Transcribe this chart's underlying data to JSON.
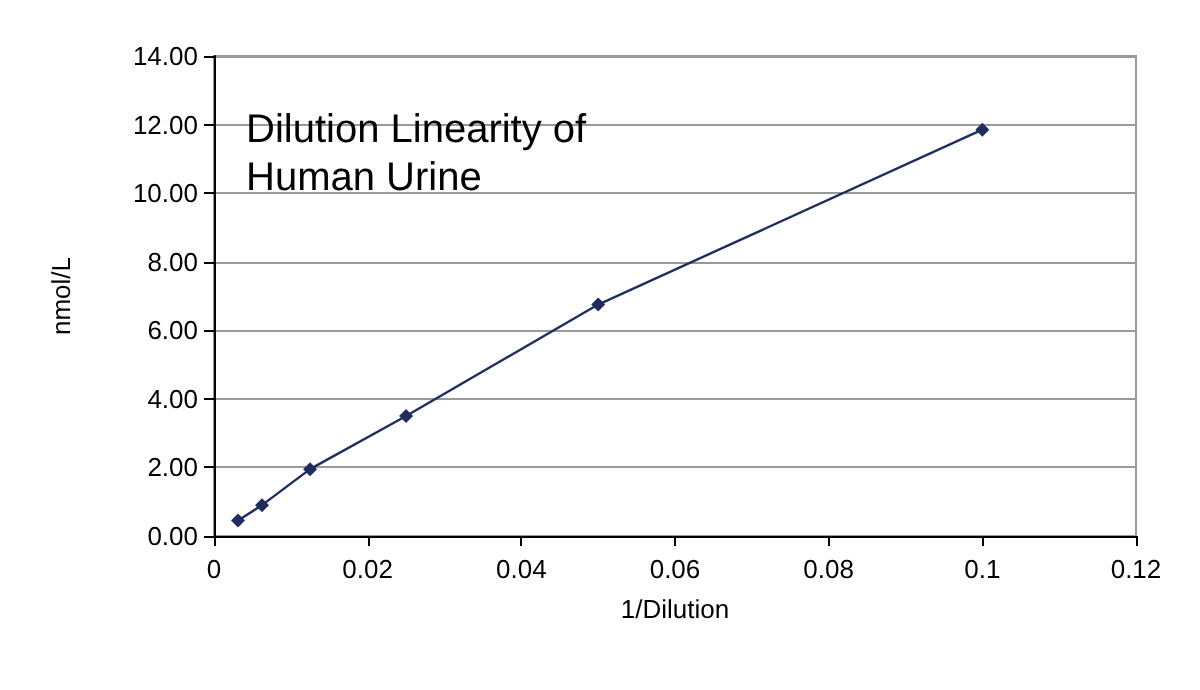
{
  "chart_data": {
    "type": "line",
    "title": "Dilution Linearity of Human Urine",
    "xlabel": "1/Dilution",
    "ylabel": "nmol/L",
    "x": [
      0.003125,
      0.00625,
      0.0125,
      0.025,
      0.05,
      0.1
    ],
    "series": [
      {
        "color": "#1f2d5e",
        "values": [
          0.45,
          0.9,
          1.95,
          3.5,
          6.75,
          11.85
        ]
      }
    ],
    "xlim": [
      0,
      0.12
    ],
    "xticks": [
      0,
      0.02,
      0.04,
      0.06,
      0.08,
      0.1,
      0.12
    ],
    "ylim": [
      0,
      14
    ],
    "yticks": [
      {
        "value": 0,
        "label": "0.00"
      },
      {
        "value": 2,
        "label": "2.00"
      },
      {
        "value": 4,
        "label": "4.00"
      },
      {
        "value": 6,
        "label": "6.00"
      },
      {
        "value": 8,
        "label": "8.00"
      },
      {
        "value": 10,
        "label": "10.00"
      },
      {
        "value": 12,
        "label": "12.00"
      },
      {
        "value": 14,
        "label": "14.00"
      }
    ],
    "grid": "y",
    "marker": "diamond",
    "line_style": "solid"
  }
}
